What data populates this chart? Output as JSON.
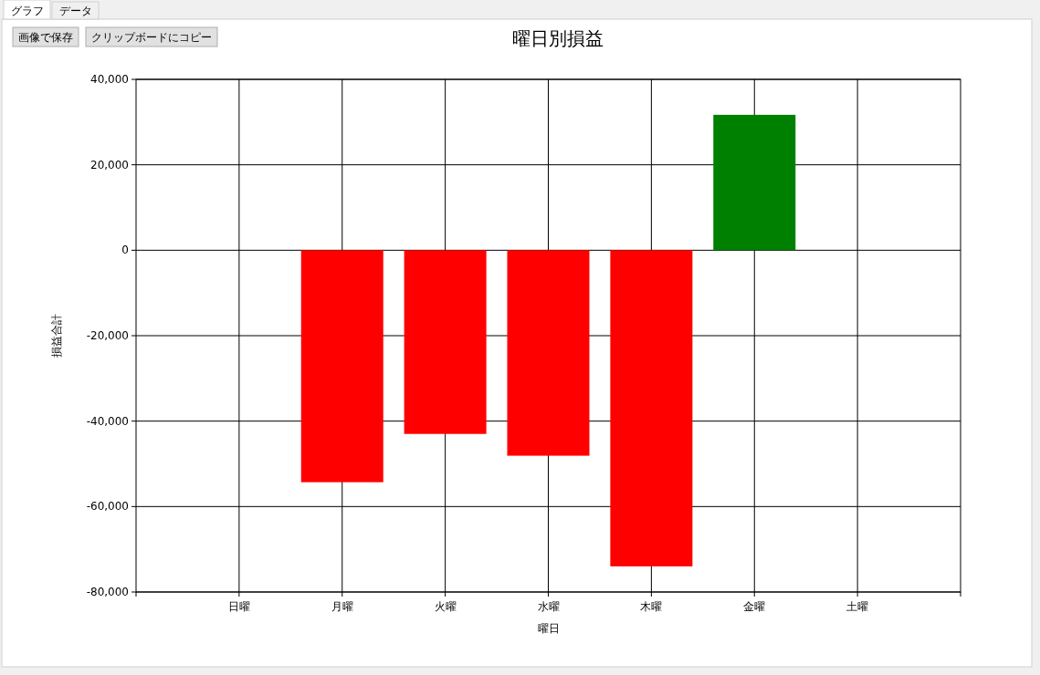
{
  "chart_data": {
    "type": "bar",
    "title": "曜日別損益",
    "xlabel": "曜日",
    "ylabel": "損益合計",
    "categories": [
      "日曜",
      "月曜",
      "火曜",
      "水曜",
      "木曜",
      "金曜",
      "土曜"
    ],
    "values": [
      null,
      -54300,
      -43000,
      -48100,
      -74000,
      31700,
      null
    ],
    "colors": [
      null,
      "#ff0000",
      "#ff0000",
      "#ff0000",
      "#ff0000",
      "#008000",
      null
    ],
    "ylim": [
      -80000,
      40000
    ],
    "yticks": [
      {
        "value": -80000,
        "label": "-80,000"
      },
      {
        "value": -60000,
        "label": "-60,000"
      },
      {
        "value": -40000,
        "label": "-40,000"
      },
      {
        "value": -20000,
        "label": "-20,000"
      },
      {
        "value": 0,
        "label": "0"
      },
      {
        "value": 20000,
        "label": "20,000"
      },
      {
        "value": 40000,
        "label": "40,000"
      }
    ],
    "grid": true,
    "annotations": [
      "グラフ",
      "データ",
      "画像で保存",
      "クリップボードにコピー"
    ]
  }
}
